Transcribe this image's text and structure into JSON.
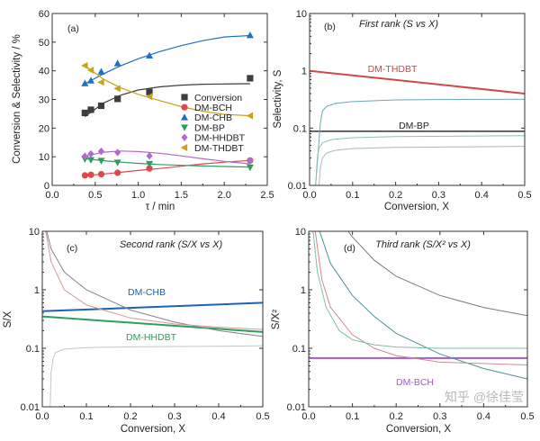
{
  "watermark": "知乎 @徐佳莹",
  "chart_data": [
    {
      "type": "scatter",
      "panel_tag": "(a)",
      "xlabel": "τ / min",
      "ylabel": "Conversion & Selectivity / %",
      "xlim": [
        0,
        2.5
      ],
      "ylim": [
        0,
        60
      ],
      "yscale": "linear",
      "xticks": [
        0.0,
        0.5,
        1.0,
        1.5,
        2.0,
        2.5
      ],
      "xtick_labels": [
        "0.0",
        "0.5",
        "1.0",
        "1.5",
        "2.0",
        "2.5"
      ],
      "yticks": [
        0,
        10,
        20,
        30,
        40,
        50,
        60
      ],
      "ytick_labels": [
        "0",
        "10",
        "20",
        "30",
        "40",
        "50",
        "60"
      ],
      "legend_position": "center-right",
      "x": [
        0.38,
        0.45,
        0.57,
        0.76,
        1.13,
        2.3
      ],
      "fit_x": [
        0.38,
        0.6,
        0.8,
        1.0,
        1.25,
        1.5,
        1.75,
        2.0,
        2.3
      ],
      "series": [
        {
          "name": "Conversion",
          "marker": "square",
          "color": "#3d3d3d",
          "values": [
            25.3,
            26.4,
            27.8,
            30.2,
            32.6,
            37.4
          ],
          "fit": [
            24,
            28.8,
            31.5,
            33.3,
            34.4,
            35,
            35.3,
            35.4,
            35.5
          ]
        },
        {
          "name": "DM-BCH",
          "marker": "circle",
          "color": "#e0474c",
          "values": [
            3.5,
            3.7,
            3.9,
            4.4,
            5.9,
            8.7
          ],
          "fit": [
            3.4,
            4.0,
            4.6,
            5.2,
            5.9,
            6.7,
            7.5,
            8.1,
            8.7
          ]
        },
        {
          "name": "DM-CHB",
          "marker": "triangle-up",
          "color": "#1f6fc5",
          "values": [
            35.6,
            36.6,
            39.7,
            42.6,
            45.3,
            52.4
          ],
          "fit": [
            35.5,
            39,
            41.8,
            44.2,
            46.7,
            48.8,
            50.5,
            51.8,
            52.3
          ]
        },
        {
          "name": "DM-BP",
          "marker": "triangle-down",
          "color": "#2ca05a",
          "values": [
            9.2,
            8.9,
            8.6,
            8.0,
            7.5,
            6.3
          ],
          "fit": [
            9.3,
            8.6,
            8.1,
            7.7,
            7.3,
            7.0,
            6.8,
            6.6,
            6.4
          ]
        },
        {
          "name": "DM-HHDBT",
          "marker": "diamond",
          "color": "#b36ad0",
          "values": [
            10.2,
            11.0,
            11.9,
            11.5,
            10.3,
            8.7
          ],
          "fit": [
            10.2,
            11.6,
            12.0,
            11.8,
            11.2,
            10.3,
            9.3,
            8.4,
            7.5
          ]
        },
        {
          "name": "DM-THDBT",
          "marker": "triangle-left",
          "color": "#c9a21a",
          "values": [
            41.8,
            40.2,
            36.0,
            33.8,
            31.0,
            24.3
          ],
          "fit": [
            41.8,
            37,
            34,
            31.8,
            29.6,
            27.5,
            25.9,
            24.8,
            24.3
          ]
        }
      ]
    },
    {
      "type": "line",
      "panel_tag": "(b)",
      "title": "First rank (S vs X)",
      "xlabel": "Conversion, X",
      "ylabel": "Selectivity, S",
      "xlim": [
        0,
        0.5
      ],
      "ylim": [
        0.01,
        10
      ],
      "yscale": "log",
      "xticks": [
        0,
        0.1,
        0.2,
        0.3,
        0.4,
        0.5
      ],
      "xtick_labels": [
        "0.0",
        "0.1",
        "0.2",
        "0.3",
        "0.4",
        "0.5"
      ],
      "yticks": [
        0.01,
        0.1,
        1,
        10
      ],
      "ytick_labels": [
        "0.01",
        "0.1",
        "1",
        "10"
      ],
      "series": [
        {
          "label": "DM-THDBT",
          "color": "#d0474a",
          "width": 2,
          "x": [
            0,
            0.5
          ],
          "y": [
            1.0,
            0.4
          ]
        },
        {
          "label": "DM-BP",
          "color": "#333333",
          "width": 1.5,
          "x": [
            0,
            0.5
          ],
          "y": [
            0.088,
            0.088
          ]
        },
        {
          "color": "#6aa8b0",
          "width": 1,
          "x": [
            0.014,
            0.02,
            0.025,
            0.03,
            0.04,
            0.06,
            0.1,
            0.2,
            0.3,
            0.5
          ],
          "y": [
            0.01,
            0.04,
            0.12,
            0.2,
            0.24,
            0.27,
            0.29,
            0.31,
            0.315,
            0.32
          ]
        },
        {
          "color": "#8cc0bb",
          "width": 1,
          "x": [
            0.014,
            0.018,
            0.022,
            0.03,
            0.05,
            0.1,
            0.2,
            0.5
          ],
          "y": [
            0.01,
            0.03,
            0.045,
            0.055,
            0.063,
            0.068,
            0.071,
            0.074
          ]
        },
        {
          "color": "#a9b9b9",
          "width": 1,
          "x": [
            0.022,
            0.025,
            0.03,
            0.04,
            0.06,
            0.1,
            0.2,
            0.5
          ],
          "y": [
            0.01,
            0.02,
            0.03,
            0.037,
            0.041,
            0.044,
            0.046,
            0.048
          ]
        }
      ]
    },
    {
      "type": "line",
      "panel_tag": "(c)",
      "title": "Second rank (S/X vs X)",
      "xlabel": "Conversion, X",
      "ylabel": "S/X",
      "xlim": [
        0,
        0.5
      ],
      "ylim": [
        0.01,
        10
      ],
      "yscale": "log",
      "xticks": [
        0,
        0.1,
        0.2,
        0.3,
        0.4,
        0.5
      ],
      "xtick_labels": [
        "0.0",
        "0.1",
        "0.2",
        "0.3",
        "0.4",
        "0.5"
      ],
      "yticks": [
        0.01,
        0.1,
        1,
        10
      ],
      "ytick_labels": [
        "0.01",
        "0.1",
        "1",
        "10"
      ],
      "series": [
        {
          "label": "DM-CHB",
          "color": "#1f62b0",
          "width": 2,
          "x": [
            0,
            0.5
          ],
          "y": [
            0.43,
            0.6
          ]
        },
        {
          "label": "DM-HHDBT",
          "color": "#2ca05a",
          "width": 2,
          "x": [
            0,
            0.5
          ],
          "y": [
            0.35,
            0.19
          ]
        },
        {
          "color": "#8a7f99",
          "width": 1,
          "x": [
            0.01,
            0.02,
            0.05,
            0.1,
            0.2,
            0.3,
            0.4,
            0.5
          ],
          "y": [
            10,
            5,
            2,
            1,
            0.45,
            0.28,
            0.2,
            0.16
          ]
        },
        {
          "color": "#d49a9a",
          "width": 1,
          "x": [
            0.008,
            0.02,
            0.05,
            0.1,
            0.2,
            0.3,
            0.4,
            0.5
          ],
          "y": [
            10,
            3,
            1,
            0.55,
            0.33,
            0.26,
            0.23,
            0.21
          ]
        },
        {
          "color": "#c9c3cc",
          "width": 1,
          "x": [
            0.018,
            0.02,
            0.025,
            0.03,
            0.05,
            0.1,
            0.2,
            0.5
          ],
          "y": [
            0.01,
            0.04,
            0.07,
            0.085,
            0.097,
            0.103,
            0.106,
            0.11
          ]
        }
      ]
    },
    {
      "type": "line",
      "panel_tag": "(d)",
      "title": "Third rank (S/X² vs X)",
      "xlabel": "Conversion, X",
      "ylabel": "S/X²",
      "xlim": [
        0,
        0.5
      ],
      "ylim": [
        0.01,
        10
      ],
      "yscale": "log",
      "xticks": [
        0,
        0.1,
        0.2,
        0.3,
        0.4,
        0.5
      ],
      "xtick_labels": [
        "0.0",
        "0.1",
        "0.2",
        "0.3",
        "0.4",
        "0.5"
      ],
      "yticks": [
        0.01,
        0.1,
        1,
        10
      ],
      "ytick_labels": [
        "0.01",
        "0.1",
        "1",
        "10"
      ],
      "series": [
        {
          "label": "DM-BCH",
          "color": "#a25bc8",
          "width": 2,
          "x": [
            0,
            0.5
          ],
          "y": [
            0.068,
            0.068
          ]
        },
        {
          "color": "#7a7a86",
          "width": 1,
          "x": [
            0.09,
            0.1,
            0.15,
            0.2,
            0.3,
            0.4,
            0.5
          ],
          "y": [
            10,
            8,
            3.2,
            1.7,
            0.8,
            0.5,
            0.36
          ]
        },
        {
          "color": "#4f8f9a",
          "width": 1,
          "x": [
            0.025,
            0.05,
            0.1,
            0.15,
            0.2,
            0.3,
            0.4,
            0.5
          ],
          "y": [
            10,
            2.8,
            0.8,
            0.35,
            0.18,
            0.08,
            0.045,
            0.03
          ]
        },
        {
          "color": "#d08a8a",
          "width": 1,
          "x": [
            0.015,
            0.03,
            0.05,
            0.1,
            0.15,
            0.2,
            0.3,
            0.5
          ],
          "y": [
            10,
            1.5,
            0.5,
            0.17,
            0.1,
            0.075,
            0.058,
            0.052
          ]
        },
        {
          "color": "#7cc0a8",
          "width": 1,
          "x": [
            0.01,
            0.02,
            0.04,
            0.07,
            0.1,
            0.15,
            0.2,
            0.3,
            0.5
          ],
          "y": [
            10,
            2,
            0.5,
            0.2,
            0.14,
            0.115,
            0.105,
            0.1,
            0.1
          ]
        }
      ]
    }
  ]
}
